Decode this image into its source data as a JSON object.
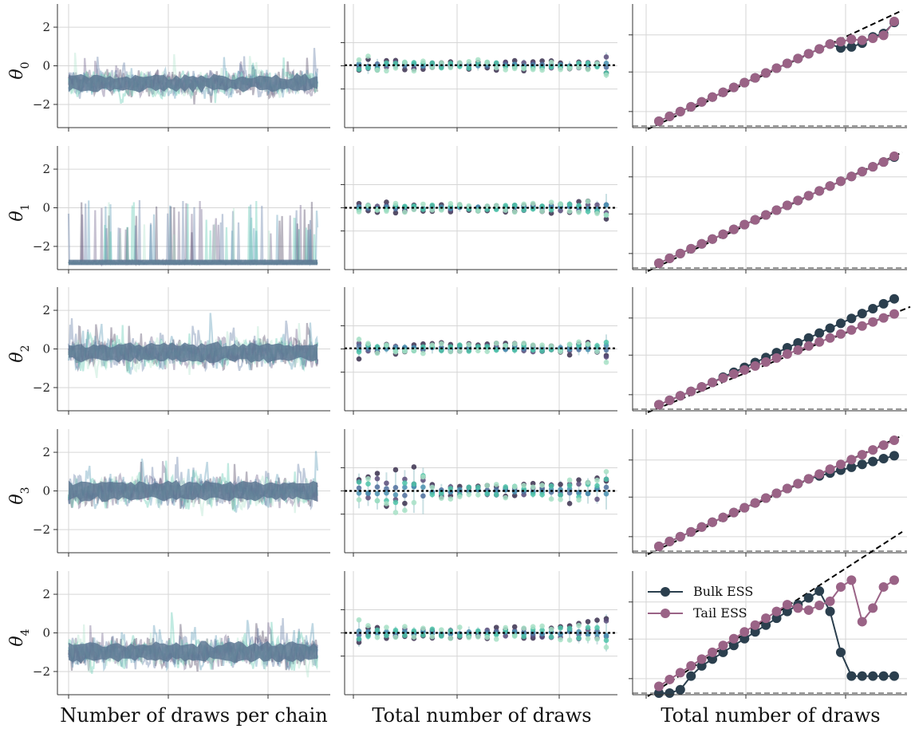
{
  "chart_data": {
    "type": "mcmc-diagnostics",
    "parameters": [
      "θ0",
      "θ1",
      "θ2",
      "θ3",
      "θ4"
    ],
    "row_labels": [
      {
        "base": "θ",
        "sub": "0"
      },
      {
        "base": "θ",
        "sub": "1"
      },
      {
        "base": "θ",
        "sub": "2"
      },
      {
        "base": "θ",
        "sub": "3"
      },
      {
        "base": "θ",
        "sub": "4"
      }
    ],
    "column_xlabels": [
      "Number of draws per chain",
      "Total number of draws",
      "Total number of draws"
    ],
    "trace_ylim": [
      -3.2,
      3.2
    ],
    "trace_yticks": [
      2,
      0,
      -2
    ],
    "trace_ytick_labels": [
      "2",
      "0",
      "−2"
    ],
    "trace_chains": 6,
    "trace_center": [
      -0.9,
      -2.9,
      -0.2,
      0.0,
      -1.0
    ],
    "trace_spread": [
      0.45,
      0.15,
      0.55,
      0.55,
      0.55
    ],
    "mcse_ref": 0,
    "mcse_ref_y": [
      0.05,
      0.0,
      0.05,
      0.0,
      0.0
    ],
    "mcse_spread_pattern": [
      [
        0.55,
        0.75,
        0.55,
        0.45,
        0.4,
        0.4,
        0.45,
        0.35,
        0.35,
        0.35,
        0.3,
        0.35,
        0.4,
        0.45,
        0.45,
        0.4,
        0.4,
        0.45,
        0.5,
        0.5,
        0.45,
        0.4,
        0.35,
        0.35,
        0.35,
        0.35,
        0.3,
        1.1
      ],
      [
        0.35,
        0.35,
        0.4,
        0.45,
        0.4,
        0.35,
        0.3,
        0.3,
        0.35,
        0.3,
        0.35,
        0.35,
        0.3,
        0.3,
        0.3,
        0.3,
        0.35,
        0.4,
        0.35,
        0.35,
        0.35,
        0.45,
        0.5,
        0.6,
        0.6,
        0.6,
        0.6,
        1.2
      ],
      [
        1.0,
        0.45,
        0.4,
        0.4,
        0.45,
        0.4,
        0.35,
        0.4,
        0.45,
        0.45,
        0.45,
        0.45,
        0.4,
        0.35,
        0.35,
        0.4,
        0.4,
        0.45,
        0.45,
        0.45,
        0.4,
        0.35,
        0.4,
        0.55,
        0.6,
        0.5,
        0.5,
        1.2
      ],
      [
        1.5,
        1.3,
        1.6,
        1.6,
        1.7,
        1.8,
        1.9,
        2.0,
        0.6,
        0.6,
        0.65,
        0.6,
        0.55,
        0.55,
        0.6,
        0.6,
        0.6,
        0.6,
        0.55,
        0.6,
        0.6,
        0.8,
        0.9,
        1.0,
        1.0,
        1.1,
        1.1,
        1.6
      ],
      [
        1.2,
        0.6,
        0.55,
        0.6,
        0.55,
        0.55,
        0.5,
        0.5,
        0.5,
        0.45,
        0.5,
        0.5,
        0.55,
        0.5,
        0.45,
        0.5,
        0.45,
        0.5,
        0.55,
        0.6,
        0.6,
        0.6,
        0.7,
        0.8,
        0.9,
        0.9,
        1.0,
        1.6
      ]
    ],
    "ess_reference": "dashed diagonal",
    "ess_min": "dashed horizontal",
    "ess_steps": 23,
    "ess_bulk": [
      [
        1,
        2,
        3,
        4,
        5,
        6,
        7,
        8,
        9,
        10,
        11,
        12,
        13,
        14,
        15,
        16,
        17,
        16.2,
        16.4,
        17.2,
        18.5,
        19.2,
        21.5
      ],
      [
        1,
        2,
        3,
        4,
        5,
        6,
        7,
        8,
        9,
        10,
        11,
        12,
        13,
        14,
        15,
        16,
        17,
        18,
        19,
        20,
        21,
        22,
        23
      ],
      [
        1,
        2,
        3,
        4,
        5,
        6,
        7.2,
        8.3,
        9.4,
        10.5,
        11.6,
        12.7,
        13.8,
        14.9,
        16,
        17.1,
        18.2,
        19.3,
        20.4,
        21.5,
        22.6,
        23.7,
        24.8
      ],
      [
        1,
        2,
        3,
        4,
        5,
        6,
        7,
        8,
        9,
        10,
        11,
        12,
        13,
        14,
        15,
        15.6,
        16.2,
        16.8,
        17.4,
        18,
        18.6,
        19.2,
        19.8
      ],
      [
        0,
        0,
        0.5,
        2.5,
        4,
        5,
        6,
        7,
        8,
        9,
        10,
        11,
        12,
        13,
        14,
        15,
        12,
        6,
        2.5,
        2.5,
        2.5,
        2.5,
        2.5
      ]
    ],
    "ess_tail": [
      [
        1,
        2,
        3,
        4,
        5,
        6,
        7,
        8,
        9,
        10,
        11,
        12,
        13,
        14,
        15,
        16,
        17,
        17.5,
        18,
        17.8,
        18.2,
        18.8,
        21.7
      ],
      [
        1,
        2,
        3,
        4,
        5,
        6,
        7,
        8,
        9,
        10,
        11,
        12,
        13,
        14,
        15,
        16,
        17,
        18,
        19,
        20,
        21,
        22,
        23.2
      ],
      [
        1,
        2,
        3,
        4,
        5,
        6,
        7,
        7.9,
        8.8,
        9.7,
        10.6,
        11.5,
        12.4,
        13.3,
        14.2,
        15.1,
        16,
        16.9,
        17.8,
        18.7,
        19.6,
        20.5,
        21.4
      ],
      [
        1,
        2,
        3,
        4,
        5,
        6,
        7,
        8,
        9,
        10,
        11,
        12,
        13,
        14,
        15,
        16,
        17,
        18,
        19,
        20,
        21,
        22,
        23
      ],
      [
        1,
        2,
        3,
        4,
        5,
        6,
        7,
        8,
        9,
        10,
        11,
        12,
        13,
        12.5,
        12.2,
        12.9,
        13.5,
        15.6,
        16.6,
        10.5,
        12.5,
        15.6,
        16.6
      ]
    ],
    "ess_ymax": [
      24,
      24,
      26,
      24,
      17
    ],
    "legend": [
      {
        "name": "Bulk ESS",
        "color": "#2b3f4e"
      },
      {
        "name": "Tail ESS",
        "color": "#9a6386"
      }
    ],
    "colors": {
      "trace": [
        "#3a2f4d",
        "#5b4c7a",
        "#4f6e9c",
        "#4a90b0",
        "#4ec3a8",
        "#a7e0c6"
      ],
      "bulk": "#2b3f4e",
      "tail": "#9a6386",
      "grid": "#d6d6d6",
      "axis": "#333333"
    }
  }
}
